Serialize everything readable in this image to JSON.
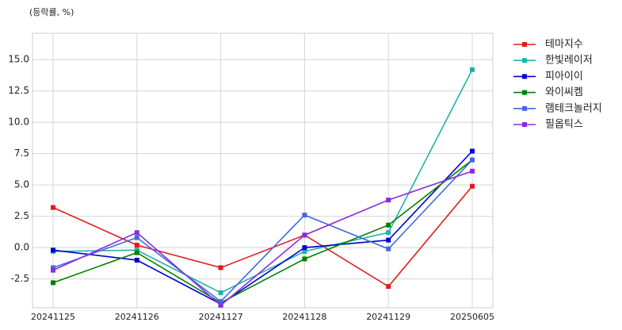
{
  "chart_data": {
    "type": "line",
    "title": "(등락률, %)",
    "categories": [
      "20241125",
      "20241126",
      "20241127",
      "20241128",
      "20241129",
      "20250605"
    ],
    "series": [
      {
        "name": "테마지수",
        "color": "#e31a1c",
        "values": [
          3.2,
          0.2,
          -1.6,
          1.0,
          -3.1,
          4.9
        ]
      },
      {
        "name": "한빛레이저",
        "color": "#20b2aa",
        "values": [
          -0.3,
          -0.2,
          -3.6,
          -0.3,
          1.2,
          14.2
        ]
      },
      {
        "name": "피아이이",
        "color": "#0000cd",
        "values": [
          -0.2,
          -1.0,
          -4.5,
          0.0,
          0.6,
          7.7
        ]
      },
      {
        "name": "와이씨켐",
        "color": "#008000",
        "values": [
          -2.8,
          -0.4,
          -4.4,
          -0.9,
          1.8,
          7.0
        ]
      },
      {
        "name": "램테크놀러지",
        "color": "#4169e1",
        "values": [
          -1.6,
          0.8,
          -4.3,
          2.6,
          -0.1,
          7.0
        ]
      },
      {
        "name": "필옵틱스",
        "color": "#8a2be2",
        "values": [
          -1.8,
          1.2,
          -4.6,
          1.0,
          3.8,
          6.1
        ]
      }
    ],
    "ylim": [
      -4.8,
      17.1
    ],
    "yticks": [
      -2.5,
      {
        "value": 0,
        "label": "0.0"
      },
      2.5,
      {
        "value": 5,
        "label": "5.0"
      },
      7.5,
      {
        "value": 10,
        "label": "10.0"
      },
      12.5,
      {
        "value": 15,
        "label": "15.0"
      }
    ],
    "grid": true,
    "legend": "outside right"
  }
}
